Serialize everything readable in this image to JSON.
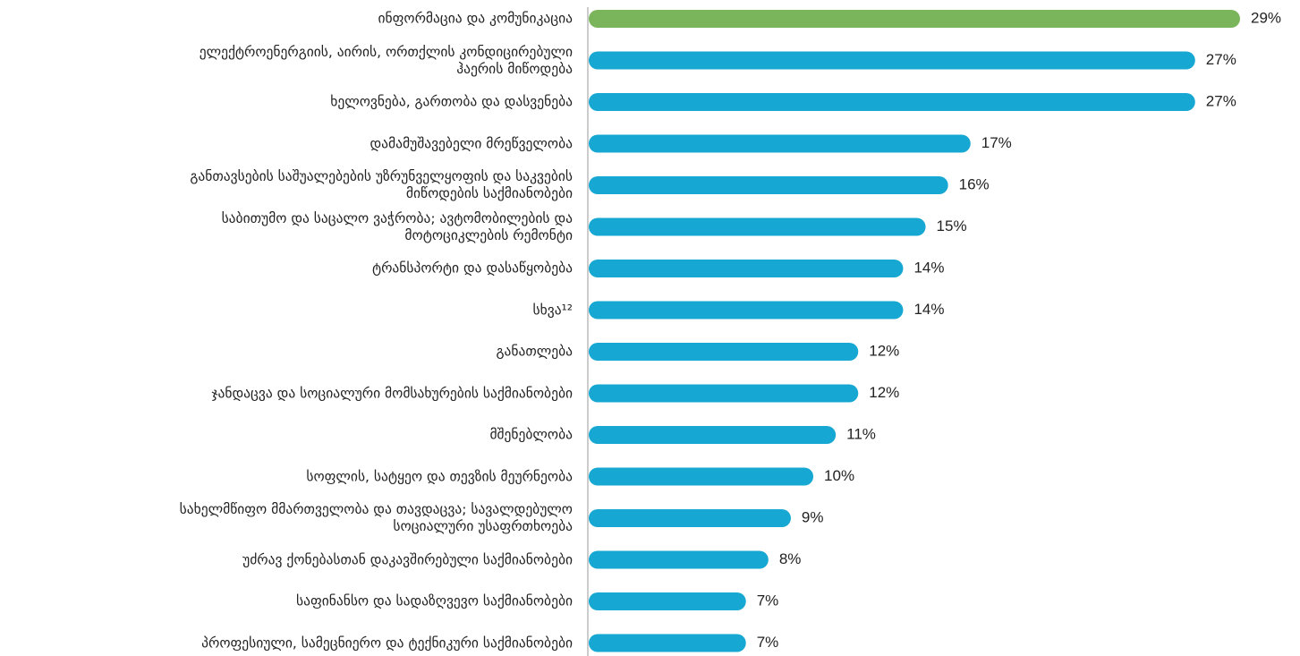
{
  "chart_data": {
    "type": "hbar",
    "categories": [
      "ინფორმაცია და კომუნიკაცია",
      "ელექტროენერგიის, აირის, ორთქლის კონდიცირებული\nჰაერის მიწოდება",
      "ხელოვნება, გართობა და დასვენება",
      "დამამუშავებელი მრეწველობა",
      "განთავსების საშუალებების უზრუნველყოფის და საკვების\nმიწოდების საქმიანობები",
      "საბითუმო და საცალო ვაჭრობა; ავტომობილების და\nმოტოციკლების რემონტი",
      "ტრანსპორტი და დასაწყობება",
      "სხვა¹²",
      "განათლება",
      "ჯანდაცვა და სოციალური მომსახურების საქმიანობები",
      "მშენებლობა",
      "სოფლის, სატყეო და თევზის მეურნეობა",
      "სახელმწიფო მმართველობა და თავდაცვა; სავალდებულო\nსოციალური უსაფრთხოება",
      "უძრავ ქონებასთან დაკავშირებული საქმიანობები",
      "საფინანსო და სადაზღვევო საქმიანობები",
      "პროფესიული, სამეცნიერო და ტექნიკური საქმიანობები"
    ],
    "values": [
      29,
      27,
      27,
      17,
      16,
      15,
      14,
      14,
      12,
      12,
      11,
      10,
      9,
      8,
      7,
      7
    ],
    "value_labels": [
      "29%",
      "27%",
      "27%",
      "17%",
      "16%",
      "15%",
      "14%",
      "14%",
      "12%",
      "12%",
      "11%",
      "10%",
      "9%",
      "8%",
      "7%",
      "7%"
    ],
    "colors": [
      "#7ab55c",
      "#16a8d2",
      "#16a8d2",
      "#16a8d2",
      "#16a8d2",
      "#16a8d2",
      "#16a8d2",
      "#16a8d2",
      "#16a8d2",
      "#16a8d2",
      "#16a8d2",
      "#16a8d2",
      "#16a8d2",
      "#16a8d2",
      "#16a8d2",
      "#16a8d2"
    ],
    "xlim": [
      0,
      29
    ]
  }
}
